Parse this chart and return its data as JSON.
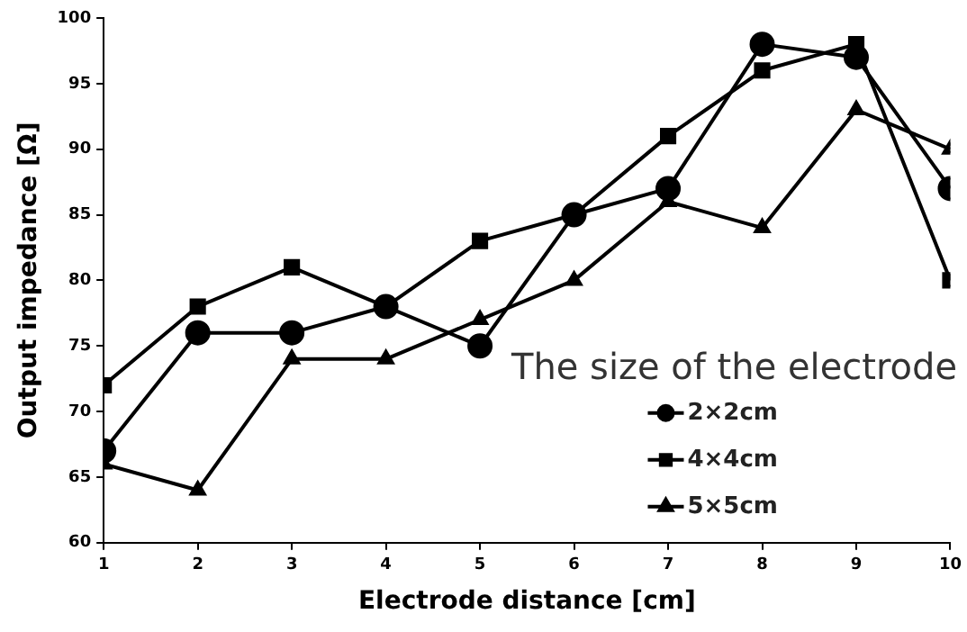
{
  "chart_data": {
    "type": "line",
    "xlabel": "Electrode distance [cm]",
    "ylabel": "Output impedance [Ω]",
    "legend_title": "The size of the electrode",
    "legend": "bottom right",
    "grid": false,
    "x": [
      1,
      2,
      3,
      4,
      5,
      6,
      7,
      8,
      9,
      10
    ],
    "xlim": [
      1,
      10
    ],
    "xticks": [
      1,
      2,
      3,
      4,
      5,
      6,
      7,
      8,
      9,
      10
    ],
    "ylim": [
      60,
      100
    ],
    "yticks": [
      60,
      65,
      70,
      75,
      80,
      85,
      90,
      95,
      100
    ],
    "series": [
      {
        "name": "2×2cm",
        "color": "#000000",
        "marker": "circle",
        "values": [
          67,
          76,
          76,
          78,
          75,
          85,
          87,
          98,
          97,
          87
        ]
      },
      {
        "name": "4×4cm",
        "color": "#000000",
        "marker": "square",
        "values": [
          72,
          78,
          81,
          78,
          83,
          85,
          91,
          96,
          98,
          80
        ]
      },
      {
        "name": "5×5cm",
        "color": "#000000",
        "marker": "triangle",
        "values": [
          66,
          64,
          74,
          74,
          77,
          80,
          86,
          84,
          93,
          90
        ]
      }
    ]
  }
}
